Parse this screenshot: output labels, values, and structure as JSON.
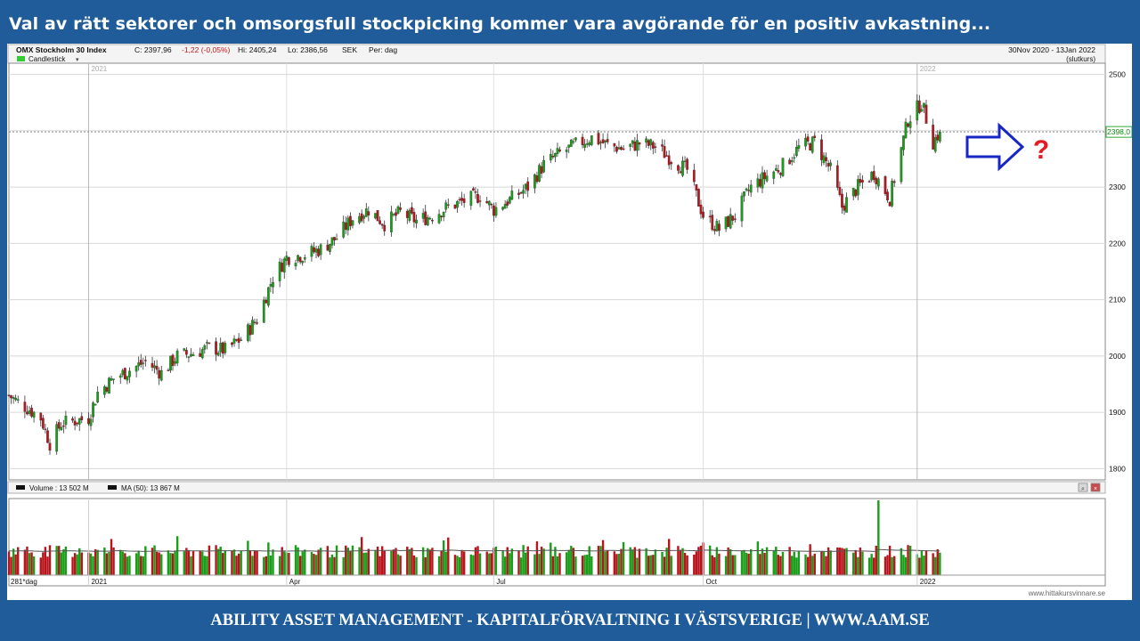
{
  "slide": {
    "title": "Val av rätt sektorer och omsorgsfull stockpicking kommer vara avgörande för en positiv avkastning...",
    "footer": "ABILITY ASSET MANAGEMENT -  KAPITALFÖRVALTNING I VÄSTSVERIGE   |   WWW.AAM.SE",
    "question_mark": "?"
  },
  "chart_header": {
    "index_name": "OMX Stockholm 30 Index",
    "close": "C: 2397,96",
    "change": "-1,22 (-0,05%)",
    "high": "Hi: 2405,24",
    "low": "Lo: 2386,56",
    "currency": "SEK",
    "period": "Per: dag",
    "chart_type": "Candlestick",
    "date_range": "30Nov 2020 - 13Jan 2022",
    "price_basis": "(slutkurs)",
    "last_price_label": "2398,0"
  },
  "volume_header": {
    "volume": "Volume : 13 502 M",
    "ma": "MA (50): 13 867 M",
    "days": "281*dag"
  },
  "watermark": "www.hittakursvinnare.se",
  "colors": {
    "up": "#1a9e1a",
    "down": "#b8141c",
    "arrow": "#1726c4",
    "question": "#e11b22",
    "slide_bg": "#1f5c99"
  },
  "chart_data": [
    {
      "type": "candlestick",
      "ylim": [
        1780,
        2520
      ],
      "y_ticks": [
        "2500",
        "2400",
        "2300",
        "2200",
        "2100",
        "2000",
        "1900",
        "1800"
      ],
      "x_labels": [
        "2021",
        "Apr",
        "Jul",
        "Oct",
        "2022"
      ],
      "last_price": 2398,
      "close_path": [
        [
          "2020-11-30",
          1930
        ],
        [
          "2020-12-04",
          1918
        ],
        [
          "2020-12-09",
          1905
        ],
        [
          "2020-12-14",
          1890
        ],
        [
          "2020-12-18",
          1845
        ],
        [
          "2020-12-23",
          1880
        ],
        [
          "2021-01-04",
          1890
        ],
        [
          "2021-01-08",
          1935
        ],
        [
          "2021-01-15",
          1960
        ],
        [
          "2021-01-22",
          1975
        ],
        [
          "2021-01-29",
          1990
        ],
        [
          "2021-02-05",
          1970
        ],
        [
          "2021-02-12",
          2000
        ],
        [
          "2021-02-19",
          2005
        ],
        [
          "2021-02-26",
          2015
        ],
        [
          "2021-03-05",
          2010
        ],
        [
          "2021-03-12",
          2030
        ],
        [
          "2021-03-19",
          2065
        ],
        [
          "2021-03-26",
          2140
        ],
        [
          "2021-04-01",
          2175
        ],
        [
          "2021-04-09",
          2180
        ],
        [
          "2021-04-16",
          2190
        ],
        [
          "2021-04-23",
          2210
        ],
        [
          "2021-04-30",
          2245
        ],
        [
          "2021-05-07",
          2260
        ],
        [
          "2021-05-14",
          2235
        ],
        [
          "2021-05-21",
          2255
        ],
        [
          "2021-05-28",
          2240
        ],
        [
          "2021-06-04",
          2250
        ],
        [
          "2021-06-11",
          2265
        ],
        [
          "2021-06-18",
          2275
        ],
        [
          "2021-06-25",
          2285
        ],
        [
          "2021-07-01",
          2260
        ],
        [
          "2021-07-09",
          2280
        ],
        [
          "2021-07-16",
          2300
        ],
        [
          "2021-07-23",
          2340
        ],
        [
          "2021-07-30",
          2360
        ],
        [
          "2021-08-06",
          2375
        ],
        [
          "2021-08-13",
          2388
        ],
        [
          "2021-08-20",
          2375
        ],
        [
          "2021-08-27",
          2368
        ],
        [
          "2021-09-03",
          2378
        ],
        [
          "2021-09-10",
          2372
        ],
        [
          "2021-09-17",
          2350
        ],
        [
          "2021-09-24",
          2330
        ],
        [
          "2021-10-01",
          2250
        ],
        [
          "2021-10-08",
          2225
        ],
        [
          "2021-10-15",
          2250
        ],
        [
          "2021-10-22",
          2300
        ],
        [
          "2021-10-29",
          2320
        ],
        [
          "2021-11-05",
          2338
        ],
        [
          "2021-11-12",
          2370
        ],
        [
          "2021-11-19",
          2380
        ],
        [
          "2021-11-26",
          2330
        ],
        [
          "2021-12-01",
          2265
        ],
        [
          "2021-12-08",
          2300
        ],
        [
          "2021-12-15",
          2325
        ],
        [
          "2021-12-22",
          2280
        ],
        [
          "2021-12-30",
          2420
        ],
        [
          "2022-01-05",
          2450
        ],
        [
          "2022-01-10",
          2380
        ],
        [
          "2022-01-13",
          2398
        ]
      ],
      "volume_ma50_m": 13867,
      "volume_last_m": 13502,
      "volume_peak_date": "2021-12-17"
    }
  ]
}
